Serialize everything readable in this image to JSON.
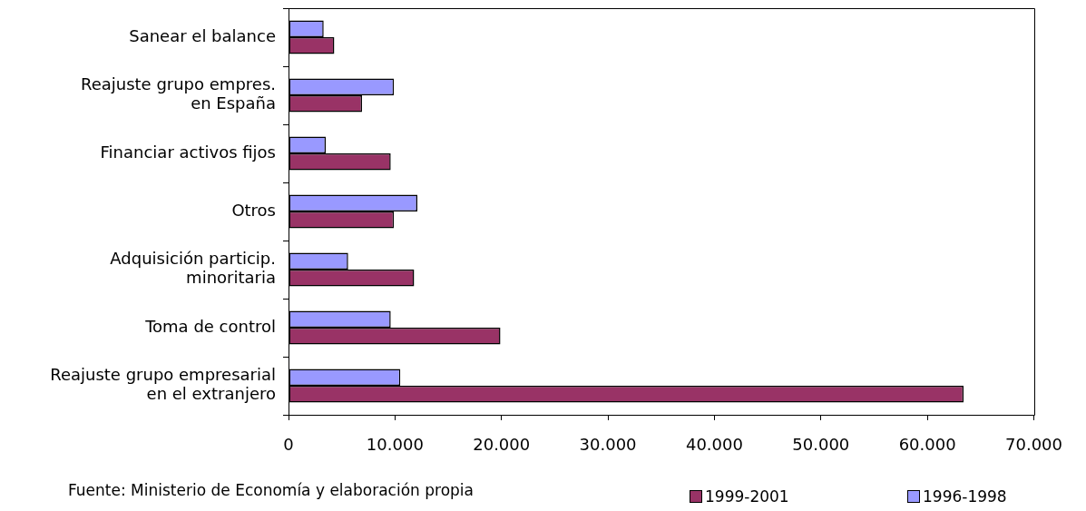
{
  "chart_data": {
    "type": "bar",
    "orientation": "horizontal",
    "categories": [
      "Sanear el balance",
      "Reajuste grupo empres.\nen España",
      "Financiar activos fijos",
      "Otros",
      "Adquisición particip.\nminoritaria",
      "Toma de control",
      "Reajuste grupo empresarial\nen el extranjero"
    ],
    "series": [
      {
        "name": "1999-2001",
        "color": "#993366",
        "values": [
          4300,
          6900,
          9600,
          9900,
          11800,
          19900,
          63400
        ]
      },
      {
        "name": "1996-1998",
        "color": "#9999ff",
        "values": [
          3300,
          9900,
          3500,
          12100,
          5600,
          9600,
          10500
        ]
      }
    ],
    "xlim": [
      0,
      70000
    ],
    "xticks": [
      0,
      {
        "value": 10000,
        "label": "10.000"
      },
      {
        "value": 20000,
        "label": "20.000"
      },
      {
        "value": 30000,
        "label": "30.000"
      },
      {
        "value": 40000,
        "label": "40.000"
      },
      {
        "value": 50000,
        "label": "50.000"
      },
      {
        "value": 60000,
        "label": "60.000"
      },
      {
        "value": 70000,
        "label": "70.000"
      }
    ],
    "grid": false,
    "legend": "bottom",
    "annotations": [
      "Fuente: Ministerio de Economía y elaboración propia"
    ]
  }
}
